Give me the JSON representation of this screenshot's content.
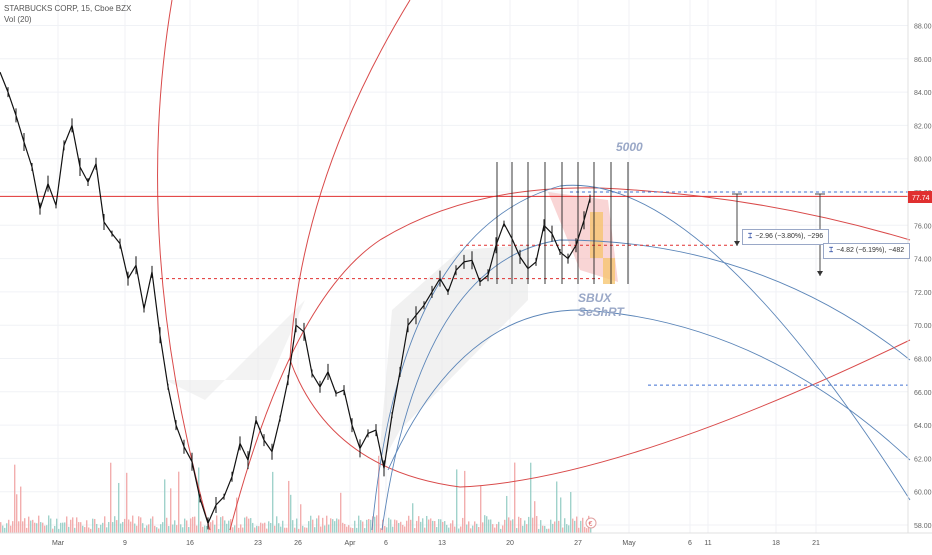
{
  "legend": {
    "title": "STARBUCKS CORP, 15, Cboe BZX",
    "vol": "Vol (20)"
  },
  "colors": {
    "price": "#111111",
    "price_line": "#e03030",
    "price_badge": "#e03030",
    "curves": "#d94a4a",
    "fib_blue": "#5b85b8",
    "dashed_red": "#e03030",
    "dashed_blue": "#3f6fd1",
    "vol_up": "#8fcac2",
    "vol_down": "#f0a0a0",
    "text_watermark": "#9aa8c7",
    "short_box": "#f5c36a"
  },
  "annotations": {
    "count_label": "5000",
    "symbol_label": "SBUX",
    "idea_label": "SeShRT",
    "currency_icon": "€"
  },
  "measures": [
    {
      "text": "−2.96 (−3.80%), −296"
    },
    {
      "text": "−4.82 (−6.19%), −482"
    }
  ],
  "chart_data": {
    "type": "line",
    "title": "STARBUCKS CORP, 15, Cboe BZX",
    "xlabel": "",
    "ylabel": "",
    "x_ticks": [
      "Mar",
      "9",
      "16",
      "23",
      "26",
      "Apr",
      "6",
      "13",
      "20",
      "27",
      "May",
      "6",
      "11",
      "18",
      "21"
    ],
    "y_ticks": [
      58,
      60,
      62,
      64,
      66,
      68,
      70,
      72,
      74,
      76,
      78,
      80,
      82,
      84,
      86,
      88
    ],
    "ylim": [
      57.4,
      89.4
    ],
    "current_price": "77.74",
    "horizontal_levels": [
      {
        "value": 77.74,
        "style": "solid",
        "color": "red"
      },
      {
        "value": 78.0,
        "style": "dashed",
        "color": "blue"
      },
      {
        "value": 74.8,
        "style": "dashed",
        "color": "red"
      },
      {
        "value": 72.8,
        "style": "dashed",
        "color": "red"
      },
      {
        "value": 66.4,
        "style": "dashed",
        "color": "blue"
      }
    ],
    "price_series": [
      {
        "name": "SBUX",
        "points": [
          [
            0,
            85.2
          ],
          [
            8,
            84.0
          ],
          [
            16,
            82.6
          ],
          [
            24,
            81.0
          ],
          [
            32,
            79.5
          ],
          [
            40,
            77.0
          ],
          [
            48,
            78.5
          ],
          [
            56,
            77.2
          ],
          [
            64,
            80.8
          ],
          [
            72,
            82.0
          ],
          [
            80,
            79.5
          ],
          [
            88,
            78.6
          ],
          [
            96,
            79.7
          ],
          [
            104,
            76.2
          ],
          [
            112,
            75.5
          ],
          [
            120,
            74.9
          ],
          [
            128,
            72.8
          ],
          [
            136,
            73.6
          ],
          [
            144,
            71.0
          ],
          [
            152,
            73.2
          ],
          [
            160,
            69.4
          ],
          [
            168,
            66.3
          ],
          [
            176,
            64.0
          ],
          [
            184,
            62.7
          ],
          [
            192,
            61.8
          ],
          [
            200,
            59.6
          ],
          [
            208,
            58.1
          ],
          [
            216,
            59.2
          ],
          [
            224,
            59.7
          ],
          [
            232,
            60.9
          ],
          [
            240,
            62.9
          ],
          [
            248,
            61.9
          ],
          [
            256,
            64.3
          ],
          [
            264,
            63.1
          ],
          [
            272,
            62.4
          ],
          [
            280,
            64.4
          ],
          [
            288,
            66.7
          ],
          [
            296,
            70.0
          ],
          [
            304,
            69.6
          ],
          [
            312,
            67.1
          ],
          [
            320,
            66.3
          ],
          [
            328,
            67.2
          ],
          [
            336,
            65.9
          ],
          [
            344,
            66.1
          ],
          [
            352,
            64.0
          ],
          [
            360,
            62.6
          ],
          [
            368,
            63.5
          ],
          [
            376,
            63.7
          ],
          [
            384,
            61.4
          ],
          [
            392,
            64.6
          ],
          [
            400,
            67.2
          ],
          [
            408,
            70.0
          ],
          [
            416,
            70.6
          ],
          [
            424,
            71.2
          ],
          [
            432,
            72.0
          ],
          [
            440,
            72.8
          ],
          [
            448,
            72.0
          ],
          [
            456,
            73.3
          ],
          [
            464,
            73.8
          ],
          [
            472,
            73.9
          ],
          [
            480,
            72.6
          ],
          [
            488,
            73.0
          ],
          [
            496,
            74.8
          ],
          [
            504,
            76.1
          ],
          [
            512,
            75.2
          ],
          [
            520,
            74.1
          ],
          [
            528,
            73.4
          ],
          [
            536,
            73.8
          ],
          [
            544,
            76.0
          ],
          [
            552,
            75.5
          ],
          [
            560,
            74.4
          ],
          [
            568,
            74.0
          ],
          [
            576,
            74.8
          ],
          [
            584,
            76.3
          ],
          [
            590,
            77.6
          ]
        ]
      }
    ]
  }
}
